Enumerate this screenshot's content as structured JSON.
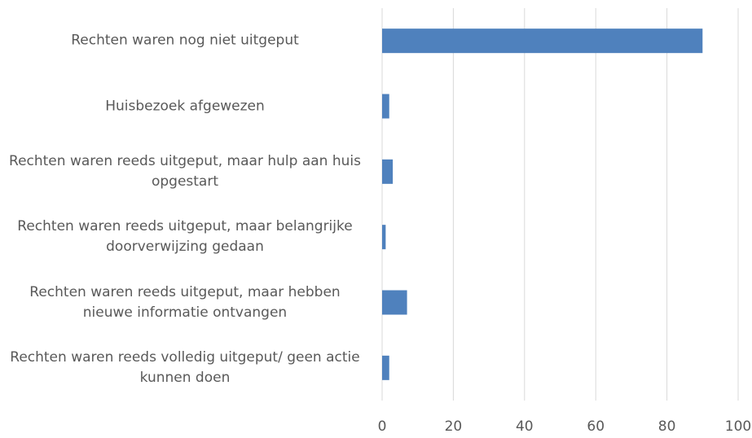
{
  "chart_data": {
    "type": "barh",
    "categories": [
      "Rechten waren nog niet uitgeput",
      "Huisbezoek afgewezen",
      "Rechten waren reeds uitgeput, maar hulp aan huis opgestart",
      "Rechten waren reeds uitgeput, maar belangrijke doorverwijzing gedaan",
      "Rechten waren reeds uitgeput, maar hebben nieuwe informatie ontvangen",
      "Rechten waren reeds volledig uitgeput/ geen actie kunnen doen"
    ],
    "values": [
      90,
      2,
      3,
      1,
      7,
      2
    ],
    "color": "#4f81bd",
    "xlim": [
      0,
      100
    ],
    "xticks": [
      0,
      20,
      40,
      60,
      80,
      100
    ],
    "grid": true
  }
}
